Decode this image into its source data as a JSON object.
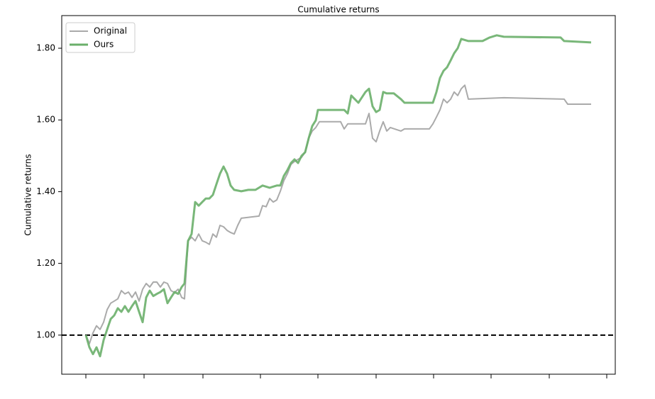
{
  "chart_data": {
    "type": "line",
    "title": "Cumulative returns",
    "y_label": "Cumulative returns",
    "xlim": [
      -34,
      746
    ],
    "xticks": [
      0,
      82,
      165,
      246,
      327,
      409,
      490,
      571,
      653,
      734
    ],
    "ylim": [
      0.891,
      1.891
    ],
    "yticks": [
      {
        "value": 1.0,
        "label": "1.00"
      },
      {
        "value": 1.2,
        "label": "1.20"
      },
      {
        "value": 1.4,
        "label": "1.40"
      },
      {
        "value": 1.6,
        "label": "1.60"
      },
      {
        "value": 1.8,
        "label": "1.80"
      }
    ],
    "hline": 1,
    "legend": "upper left",
    "series": [
      {
        "name": "Original",
        "color": "#aaaaaa",
        "x": [
          0,
          5,
          10,
          15,
          20,
          25,
          30,
          35,
          40,
          45,
          50,
          55,
          60,
          65,
          70,
          75,
          80,
          85,
          90,
          95,
          100,
          105,
          110,
          115,
          120,
          125,
          130,
          135,
          139,
          144,
          149,
          154,
          159,
          164,
          169,
          174,
          179,
          184,
          189,
          194,
          199,
          204,
          209,
          214,
          219,
          244,
          249,
          254,
          259,
          264,
          269,
          274,
          279,
          284,
          289,
          294,
          299,
          304,
          309,
          314,
          319,
          324,
          329,
          359,
          364,
          369,
          394,
          399,
          404,
          409,
          414,
          419,
          424,
          429,
          444,
          449,
          484,
          489,
          494,
          499,
          504,
          509,
          514,
          519,
          524,
          529,
          534,
          539,
          589,
          674,
          679,
          712
        ],
        "values": [
          1,
          0.976,
          1.006,
          1.026,
          1.016,
          1.036,
          1.071,
          1.089,
          1.095,
          1.101,
          1.124,
          1.115,
          1.12,
          1.105,
          1.12,
          1.095,
          1.128,
          1.144,
          1.134,
          1.148,
          1.148,
          1.134,
          1.148,
          1.144,
          1.124,
          1.119,
          1.128,
          1.105,
          1.101,
          1.263,
          1.273,
          1.263,
          1.282,
          1.263,
          1.259,
          1.253,
          1.282,
          1.273,
          1.306,
          1.302,
          1.292,
          1.286,
          1.282,
          1.306,
          1.326,
          1.332,
          1.361,
          1.358,
          1.381,
          1.371,
          1.377,
          1.401,
          1.431,
          1.45,
          1.476,
          1.484,
          1.49,
          1.496,
          1.51,
          1.549,
          1.569,
          1.579,
          1.595,
          1.595,
          1.575,
          1.589,
          1.589,
          1.618,
          1.549,
          1.539,
          1.569,
          1.595,
          1.569,
          1.579,
          1.569,
          1.575,
          1.575,
          1.589,
          1.608,
          1.628,
          1.658,
          1.648,
          1.658,
          1.678,
          1.668,
          1.687,
          1.697,
          1.658,
          1.662,
          1.658,
          1.644,
          1.644
        ]
      },
      {
        "name": "Ours",
        "color": "#6aaf6a",
        "x": [
          0,
          5,
          10,
          15,
          20,
          25,
          30,
          35,
          40,
          45,
          50,
          55,
          60,
          65,
          70,
          75,
          80,
          85,
          90,
          95,
          100,
          105,
          110,
          115,
          120,
          125,
          130,
          135,
          139,
          144,
          149,
          154,
          159,
          164,
          169,
          174,
          179,
          184,
          189,
          194,
          199,
          204,
          209,
          219,
          229,
          239,
          249,
          259,
          269,
          274,
          279,
          284,
          289,
          294,
          299,
          304,
          309,
          314,
          319,
          324,
          327,
          364,
          369,
          374,
          379,
          384,
          394,
          399,
          404,
          409,
          414,
          419,
          424,
          434,
          444,
          449,
          489,
          494,
          499,
          504,
          509,
          514,
          519,
          524,
          529,
          539,
          559,
          569,
          579,
          589,
          669,
          674,
          712
        ],
        "values": [
          1,
          0.966,
          0.947,
          0.966,
          0.941,
          0.986,
          1.016,
          1.045,
          1.055,
          1.075,
          1.065,
          1.081,
          1.065,
          1.081,
          1.095,
          1.065,
          1.036,
          1.105,
          1.124,
          1.109,
          1.115,
          1.12,
          1.128,
          1.089,
          1.105,
          1.12,
          1.115,
          1.134,
          1.144,
          1.263,
          1.282,
          1.371,
          1.361,
          1.371,
          1.381,
          1.381,
          1.391,
          1.421,
          1.45,
          1.47,
          1.45,
          1.417,
          1.405,
          1.401,
          1.405,
          1.405,
          1.417,
          1.411,
          1.417,
          1.417,
          1.444,
          1.46,
          1.48,
          1.49,
          1.48,
          1.5,
          1.51,
          1.549,
          1.583,
          1.599,
          1.628,
          1.628,
          1.618,
          1.668,
          1.658,
          1.648,
          1.678,
          1.687,
          1.638,
          1.622,
          1.628,
          1.678,
          1.674,
          1.674,
          1.658,
          1.648,
          1.648,
          1.678,
          1.717,
          1.737,
          1.747,
          1.766,
          1.786,
          1.8,
          1.826,
          1.82,
          1.82,
          1.83,
          1.836,
          1.832,
          1.83,
          1.82,
          1.816
        ]
      }
    ]
  }
}
